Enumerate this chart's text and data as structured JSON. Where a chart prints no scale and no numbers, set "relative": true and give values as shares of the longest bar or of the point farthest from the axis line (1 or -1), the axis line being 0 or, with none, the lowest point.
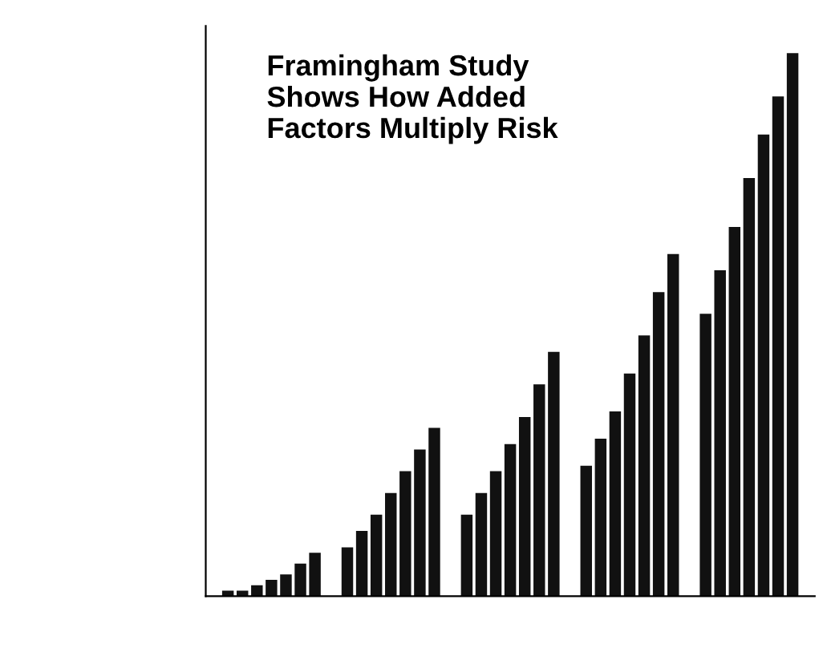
{
  "chart_data": {
    "type": "bar",
    "title": "Framingham Study\nShows How Added\nFactors Multiply Risk",
    "relative": true,
    "categories": [
      null,
      null,
      null,
      null,
      null
    ],
    "series": [
      {
        "color": "#111111",
        "values": [
          0.01,
          0.09,
          0.15,
          0.24,
          0.52
        ]
      },
      {
        "color": "#111111",
        "values": [
          0.01,
          0.12,
          0.19,
          0.29,
          0.6
        ]
      },
      {
        "color": "#111111",
        "values": [
          0.02,
          0.15,
          0.23,
          0.34,
          0.68
        ]
      },
      {
        "color": "#111111",
        "values": [
          0.03,
          0.19,
          0.28,
          0.41,
          0.77
        ]
      },
      {
        "color": "#111111",
        "values": [
          0.04,
          0.23,
          0.33,
          0.48,
          0.85
        ]
      },
      {
        "color": "#111111",
        "values": [
          0.06,
          0.27,
          0.39,
          0.56,
          0.92
        ]
      },
      {
        "color": "#111111",
        "values": [
          0.08,
          0.31,
          0.45,
          0.63,
          1.0
        ]
      }
    ],
    "grid": false,
    "legend": false
  }
}
